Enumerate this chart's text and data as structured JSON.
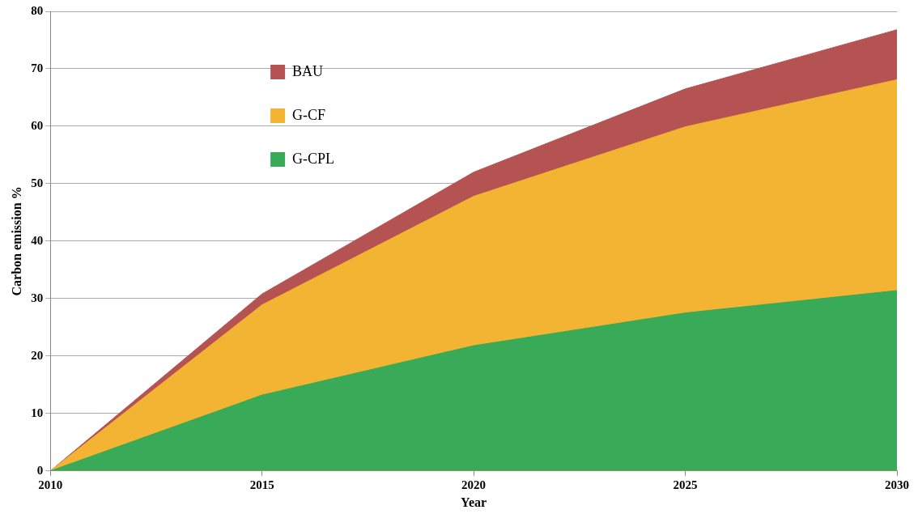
{
  "chart_data": {
    "type": "area",
    "xlabel": "Year",
    "ylabel": "Carbon emission %",
    "x": [
      2010,
      2015,
      2020,
      2025,
      2030
    ],
    "series": [
      {
        "name": "BAU",
        "color": "#b55252",
        "values": [
          0,
          30.8,
          52.0,
          66.5,
          76.8
        ]
      },
      {
        "name": "G-CF",
        "color": "#f4b433",
        "values": [
          0,
          28.9,
          47.8,
          59.9,
          68.1
        ]
      },
      {
        "name": "G-CPL",
        "color": "#38aa58",
        "values": [
          0,
          13.2,
          21.8,
          27.5,
          31.4
        ]
      }
    ],
    "xlim": [
      2010,
      2030
    ],
    "xticks": [
      2010,
      2015,
      2020,
      2025,
      2030
    ],
    "ylim": [
      0,
      80
    ],
    "yticks": [
      0,
      10,
      20,
      30,
      40,
      50,
      60,
      70,
      80
    ],
    "grid": "y",
    "legend": "top left"
  }
}
